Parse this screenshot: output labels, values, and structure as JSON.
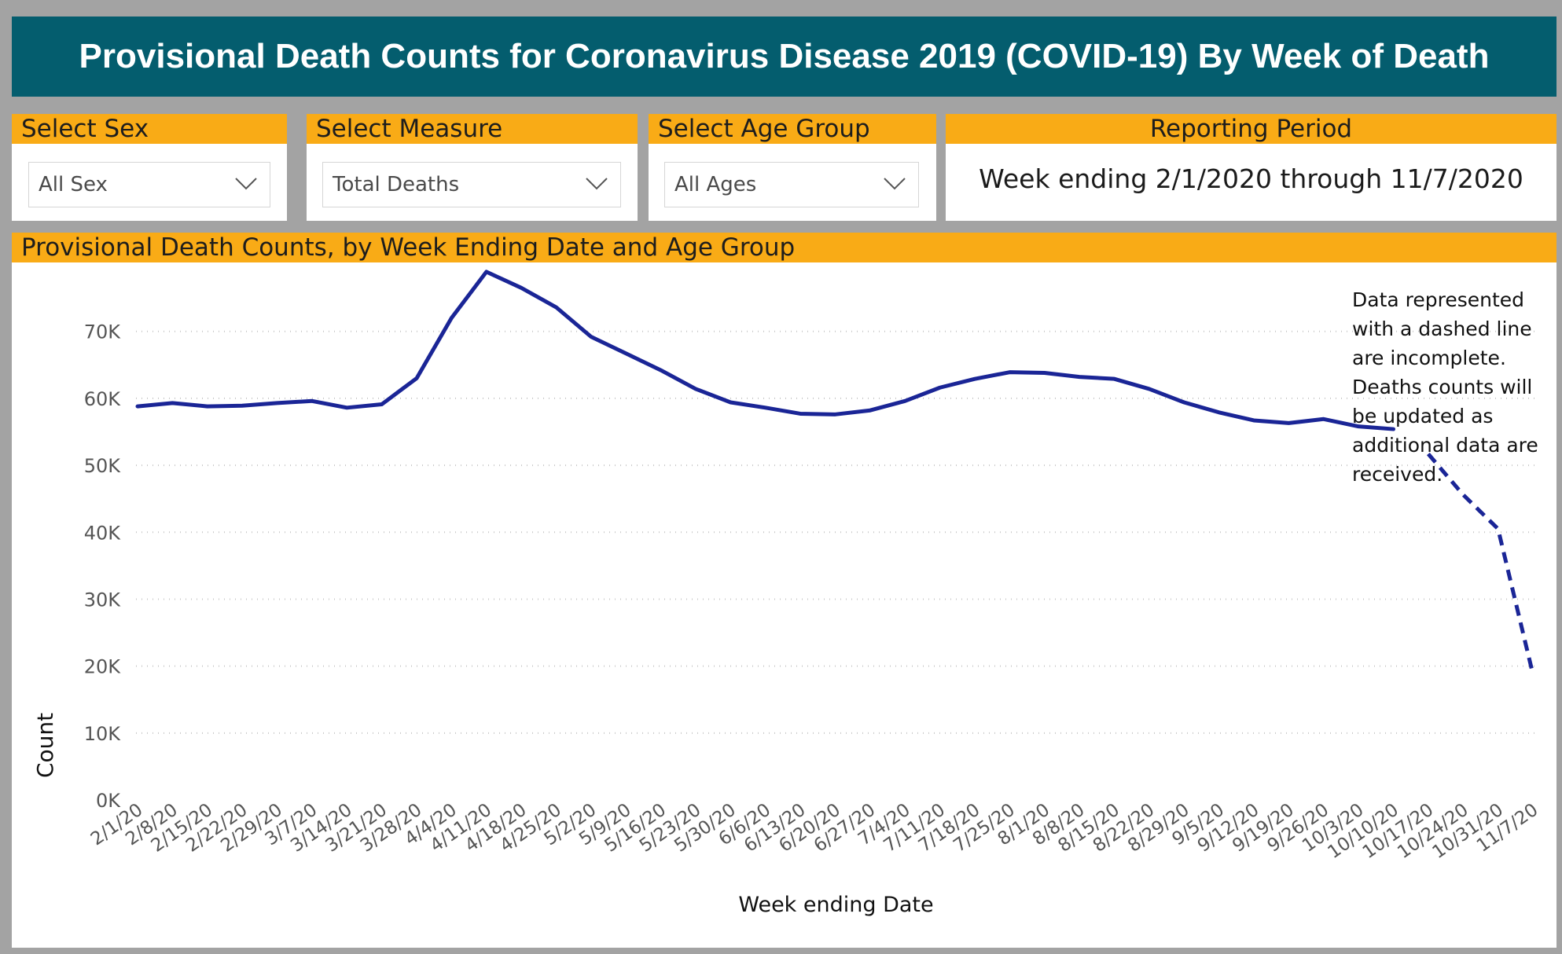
{
  "header": {
    "title": "Provisional Death Counts for Coronavirus Disease 2019 (COVID-19) By Week of Death"
  },
  "filters": {
    "sex": {
      "label": "Select Sex",
      "value": "All Sex"
    },
    "measure": {
      "label": "Select Measure",
      "value": "Total Deaths"
    },
    "age": {
      "label": "Select Age Group",
      "value": "All Ages"
    }
  },
  "reporting": {
    "label": "Reporting Period",
    "text": "Week ending 2/1/2020 through 11/7/2020"
  },
  "colors": {
    "header_bg": "#045d6e",
    "label_bg": "#f9ab16",
    "line": "#1a2596",
    "background": "#a3a3a3"
  },
  "chart_data": {
    "type": "line",
    "title": "Provisional Death Counts, by Week Ending Date and Age Group",
    "xlabel": "Week ending Date",
    "ylabel": "Count",
    "ylim": [
      0,
      80000
    ],
    "yticks": [
      "0K",
      "10K",
      "20K",
      "30K",
      "40K",
      "50K",
      "60K",
      "70K"
    ],
    "grid": true,
    "categories": [
      "2/1/20",
      "2/8/20",
      "2/15/20",
      "2/22/20",
      "2/29/20",
      "3/7/20",
      "3/14/20",
      "3/21/20",
      "3/28/20",
      "4/4/20",
      "4/11/20",
      "4/18/20",
      "4/25/20",
      "5/2/20",
      "5/9/20",
      "5/16/20",
      "5/23/20",
      "5/30/20",
      "6/6/20",
      "6/13/20",
      "6/20/20",
      "6/27/20",
      "7/4/20",
      "7/11/20",
      "7/18/20",
      "7/25/20",
      "8/1/20",
      "8/8/20",
      "8/15/20",
      "8/22/20",
      "8/29/20",
      "9/5/20",
      "9/12/20",
      "9/19/20",
      "9/26/20",
      "10/3/20",
      "10/10/20",
      "10/17/20",
      "10/24/20",
      "10/31/20",
      "11/7/20"
    ],
    "series": [
      {
        "name": "Total Deaths",
        "values": [
          58800,
          59300,
          58800,
          58900,
          59300,
          59600,
          58600,
          59100,
          63000,
          72000,
          78900,
          76500,
          73600,
          69200,
          66700,
          64200,
          61400,
          59400,
          58600,
          57700,
          57600,
          58200,
          59600,
          61600,
          62900,
          63900,
          63800,
          63200,
          62900,
          61400,
          59400,
          57900,
          56700,
          56300,
          56900,
          55800,
          55400,
          51700,
          45600,
          40500,
          18800
        ],
        "complete_through": "10/10/20",
        "incomplete_style": "dashed"
      }
    ],
    "annotation": "Data represented with a dashed line are incomplete. Deaths counts will be updated as additional data are received."
  }
}
